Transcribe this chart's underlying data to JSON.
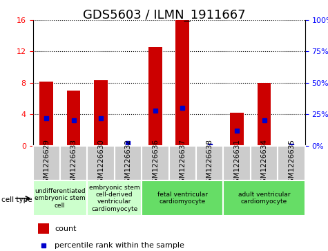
{
  "title": "GDS5603 / ILMN_1911667",
  "samples": [
    "GSM1226629",
    "GSM1226633",
    "GSM1226630",
    "GSM1226632",
    "GSM1226636",
    "GSM1226637",
    "GSM1226638",
    "GSM1226631",
    "GSM1226634",
    "GSM1226635"
  ],
  "counts": [
    8.2,
    7.0,
    8.3,
    0.0,
    12.6,
    16.0,
    0.0,
    4.2,
    8.0,
    0.0
  ],
  "percentiles": [
    22,
    20,
    22,
    2,
    28,
    30,
    0,
    12,
    20,
    0
  ],
  "ylim_left": [
    0,
    16
  ],
  "ylim_right": [
    0,
    100
  ],
  "yticks_left": [
    0,
    4,
    8,
    12,
    16
  ],
  "yticks_right": [
    0,
    25,
    50,
    75,
    100
  ],
  "cell_type_groups": [
    {
      "label": "undifferentiated\nembryonic stem\ncell",
      "start": 0,
      "end": 2,
      "color": "#ccffcc"
    },
    {
      "label": "embryonic stem\ncell-derived\nventricular\ncardiomyocyte",
      "start": 2,
      "end": 4,
      "color": "#ccffcc"
    },
    {
      "label": "fetal ventricular\ncardiomyocyte",
      "start": 4,
      "end": 7,
      "color": "#66dd66"
    },
    {
      "label": "adult ventricular\ncardiomyocyte",
      "start": 7,
      "end": 10,
      "color": "#66dd66"
    }
  ],
  "bar_color": "#cc0000",
  "percentile_color": "#0000cc",
  "sample_bg_color": "#cccccc",
  "title_fontsize": 13,
  "tick_label_fontsize": 7.5,
  "legend_fontsize": 8,
  "cell_type_label": "cell type"
}
